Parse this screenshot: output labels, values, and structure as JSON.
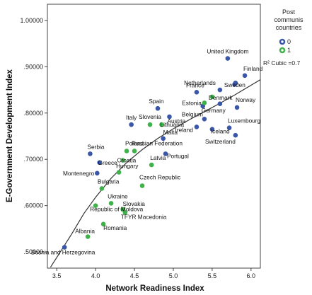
{
  "chart_data": {
    "type": "scatter",
    "title": "",
    "xlabel": "Network Readiness Index",
    "ylabel": "E-Government Development Index",
    "xlim": [
      3.38,
      6.12
    ],
    "ylim": [
      0.465,
      1.035
    ],
    "x_ticks": [
      {
        "value": 3.5,
        "label": "3.5"
      },
      {
        "value": 4.0,
        "label": "4.0"
      },
      {
        "value": 4.5,
        "label": "4.5"
      },
      {
        "value": 5.0,
        "label": "5.0"
      },
      {
        "value": 5.5,
        "label": "5.5"
      },
      {
        "value": 6.0,
        "label": "6.0"
      }
    ],
    "y_ticks": [
      {
        "value": 0.5,
        "label": ".50000"
      },
      {
        "value": 0.6,
        "label": ".60000"
      },
      {
        "value": 0.7,
        "label": ".70000"
      },
      {
        "value": 0.8,
        "label": ".80000"
      },
      {
        "value": 0.9,
        "label": ".90000"
      },
      {
        "value": 1.0,
        "label": "1.00000"
      }
    ],
    "grid": false,
    "legend": {
      "title_lines": [
        "Post",
        "communis",
        "countries"
      ],
      "placement": "top-right",
      "entries": [
        {
          "label": "0",
          "color": "#3a56a8"
        },
        {
          "label": "1",
          "color": "#3fb24a"
        }
      ]
    },
    "fit_line": {
      "label": "R² Cubic =0.7",
      "color": "#333333",
      "x": [
        3.42,
        3.55,
        3.7,
        3.85,
        4.0,
        4.2,
        4.4,
        4.6,
        4.8,
        5.0,
        5.2,
        5.4,
        5.6,
        5.8,
        6.0,
        6.12
      ],
      "y": [
        0.467,
        0.501,
        0.541,
        0.583,
        0.618,
        0.659,
        0.693,
        0.721,
        0.745,
        0.766,
        0.785,
        0.803,
        0.821,
        0.84,
        0.86,
        0.872
      ]
    },
    "series": [
      {
        "name": "0",
        "color": "#3a56a8",
        "points": [
          {
            "x": 5.7,
            "y": 0.918,
            "label": "United Kingdom"
          },
          {
            "x": 5.92,
            "y": 0.881,
            "label": "Finland"
          },
          {
            "x": 5.8,
            "y": 0.865,
            "label": "Sweden"
          },
          {
            "x": 5.79,
            "y": 0.862,
            "label": ""
          },
          {
            "x": 5.6,
            "y": 0.85,
            "label": "Netherlands"
          },
          {
            "x": 5.3,
            "y": 0.845,
            "label": "France"
          },
          {
            "x": 5.82,
            "y": 0.812,
            "label": "Norway"
          },
          {
            "x": 5.6,
            "y": 0.82,
            "label": ""
          },
          {
            "x": 5.38,
            "y": 0.815,
            "label": "Germany"
          },
          {
            "x": 4.8,
            "y": 0.81,
            "label": "Spain"
          },
          {
            "x": 4.95,
            "y": 0.792,
            "label": "Austria"
          },
          {
            "x": 5.4,
            "y": 0.787,
            "label": "Belgium"
          },
          {
            "x": 5.3,
            "y": 0.77,
            "label": "Ireland"
          },
          {
            "x": 5.72,
            "y": 0.768,
            "label": "Luxembourg"
          },
          {
            "x": 5.5,
            "y": 0.765,
            "label": "Iceland"
          },
          {
            "x": 5.8,
            "y": 0.752,
            "label": "Switzerland"
          },
          {
            "x": 4.46,
            "y": 0.775,
            "label": "Italy"
          },
          {
            "x": 4.87,
            "y": 0.745,
            "label": "Malta"
          },
          {
            "x": 4.9,
            "y": 0.712,
            "label": "Portugal"
          },
          {
            "x": 3.93,
            "y": 0.712,
            "label": "Serbia"
          },
          {
            "x": 4.05,
            "y": 0.693,
            "label": "Greece"
          },
          {
            "x": 4.02,
            "y": 0.67,
            "label": "Montenegro"
          },
          {
            "x": 3.6,
            "y": 0.51,
            "label": "Bosnia and Herzegovina"
          }
        ]
      },
      {
        "name": "1",
        "color": "#3fb24a",
        "points": [
          {
            "x": 5.5,
            "y": 0.835,
            "label": "Denmark"
          },
          {
            "x": 5.4,
            "y": 0.822,
            "label": "Estonia"
          },
          {
            "x": 4.7,
            "y": 0.775,
            "label": "Slovenia"
          },
          {
            "x": 4.85,
            "y": 0.775,
            "label": "Lithuania"
          },
          {
            "x": 4.4,
            "y": 0.718,
            "label": "Poland"
          },
          {
            "x": 4.5,
            "y": 0.718,
            "label": "Russian Federation"
          },
          {
            "x": 4.35,
            "y": 0.698,
            "label": "Croatia"
          },
          {
            "x": 4.72,
            "y": 0.688,
            "label": "Latvia"
          },
          {
            "x": 4.3,
            "y": 0.672,
            "label": "Hungary"
          },
          {
            "x": 4.6,
            "y": 0.643,
            "label": "Czech Republic"
          },
          {
            "x": 4.08,
            "y": 0.637,
            "label": "Bulgaria"
          },
          {
            "x": 4.2,
            "y": 0.605,
            "label": "Ukraine"
          },
          {
            "x": 4.0,
            "y": 0.6,
            "label": "Republic of Moldova"
          },
          {
            "x": 4.35,
            "y": 0.592,
            "label": "Slovakia"
          },
          {
            "x": 4.38,
            "y": 0.585,
            "label": "TFYR Macedonia"
          },
          {
            "x": 4.1,
            "y": 0.56,
            "label": "Romania"
          },
          {
            "x": 3.9,
            "y": 0.533,
            "label": "Albania"
          }
        ]
      }
    ]
  }
}
